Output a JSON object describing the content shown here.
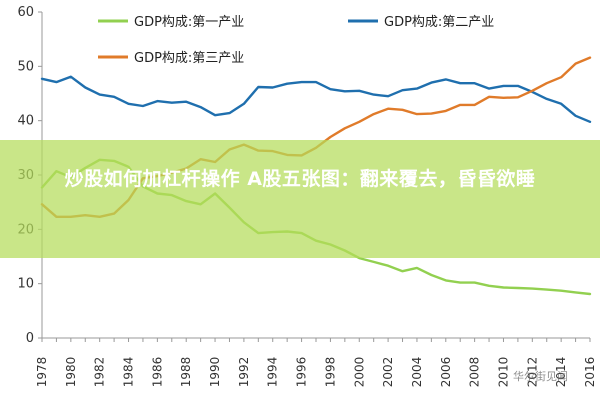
{
  "chart_data": {
    "type": "line",
    "x": [
      1978,
      1979,
      1980,
      1981,
      1982,
      1983,
      1984,
      1985,
      1986,
      1987,
      1988,
      1989,
      1990,
      1991,
      1992,
      1993,
      1994,
      1995,
      1996,
      1997,
      1998,
      1999,
      2000,
      2001,
      2002,
      2003,
      2004,
      2005,
      2006,
      2007,
      2008,
      2009,
      2010,
      2011,
      2012,
      2013,
      2014,
      2015,
      2016
    ],
    "x_ticks": [
      "1978",
      "1980",
      "1982",
      "1984",
      "1986",
      "1988",
      "1990",
      "1992",
      "1994",
      "1996",
      "1998",
      "2000",
      "2002",
      "2004",
      "2006",
      "2008",
      "2010",
      "2012",
      "2014",
      "2016"
    ],
    "y_ticks": [
      "0",
      "10",
      "20",
      "30",
      "40",
      "50",
      "60"
    ],
    "ylim": [
      0,
      60
    ],
    "series": [
      {
        "name": "GDP构成:第一产业",
        "color": "#92d050",
        "values": [
          27.7,
          30.7,
          29.6,
          31.3,
          32.8,
          32.6,
          31.5,
          27.9,
          26.6,
          26.3,
          25.2,
          24.6,
          26.6,
          24.0,
          21.3,
          19.3,
          19.5,
          19.6,
          19.3,
          17.9,
          17.2,
          16.1,
          14.7,
          14.0,
          13.3,
          12.3,
          12.9,
          11.6,
          10.6,
          10.2,
          10.2,
          9.6,
          9.3,
          9.2,
          9.1,
          8.9,
          8.7,
          8.4,
          8.1
        ]
      },
      {
        "name": "GDP构成:第二产业",
        "color": "#1f6fae",
        "values": [
          47.7,
          47.1,
          48.1,
          46.1,
          44.8,
          44.4,
          43.1,
          42.7,
          43.6,
          43.3,
          43.5,
          42.5,
          41.0,
          41.4,
          43.1,
          46.2,
          46.1,
          46.8,
          47.1,
          47.1,
          45.8,
          45.4,
          45.5,
          44.8,
          44.5,
          45.6,
          45.9,
          47.0,
          47.6,
          46.9,
          46.9,
          45.9,
          46.4,
          46.4,
          45.3,
          44.0,
          43.1,
          40.9,
          39.8
        ]
      },
      {
        "name": "GDP构成:第三产业",
        "color": "#e07b2a",
        "values": [
          24.6,
          22.3,
          22.3,
          22.6,
          22.3,
          22.9,
          25.4,
          29.4,
          29.8,
          30.4,
          31.2,
          32.9,
          32.4,
          34.7,
          35.6,
          34.5,
          34.4,
          33.7,
          33.6,
          35.0,
          37.0,
          38.6,
          39.8,
          41.2,
          42.2,
          42.0,
          41.2,
          41.3,
          41.8,
          42.9,
          42.9,
          44.4,
          44.2,
          44.3,
          45.5,
          46.9,
          48.0,
          50.5,
          51.6
        ]
      }
    ]
  },
  "overlay": {
    "headline": "炒股如何加杠杆操作 A股五张图：翻来覆去，昏昏欲睡"
  },
  "watermark": {
    "text": "华尔街见闻"
  }
}
